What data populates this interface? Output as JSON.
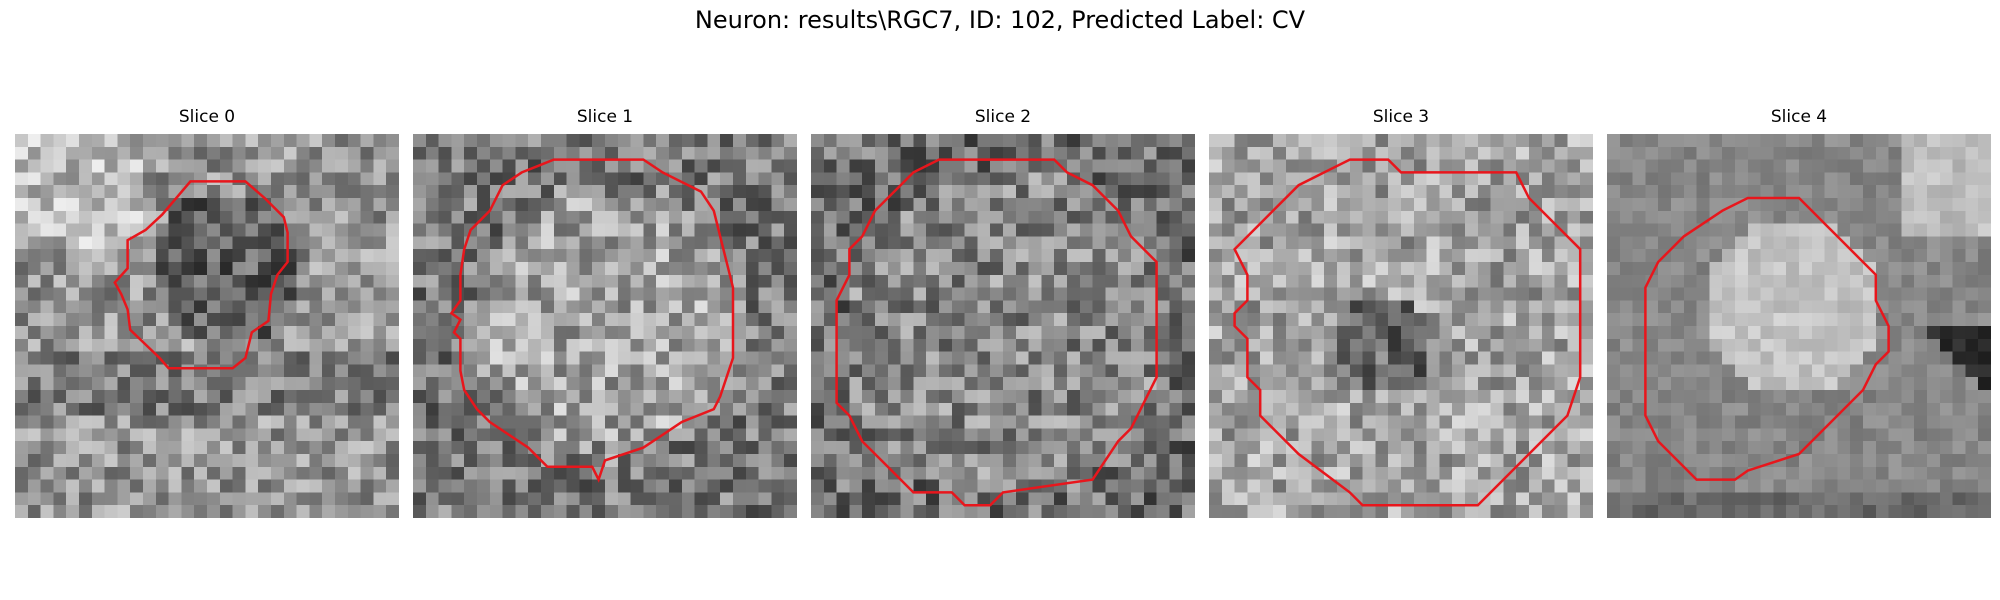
{
  "figure": {
    "title": "Neuron: results\\RGC7, ID: 102, Predicted Label: CV",
    "contour_color": "#e8161c"
  },
  "slices": [
    {
      "title": "Slice 0"
    },
    {
      "title": "Slice 1"
    },
    {
      "title": "Slice 2"
    },
    {
      "title": "Slice 3"
    },
    {
      "title": "Slice 4"
    }
  ]
}
